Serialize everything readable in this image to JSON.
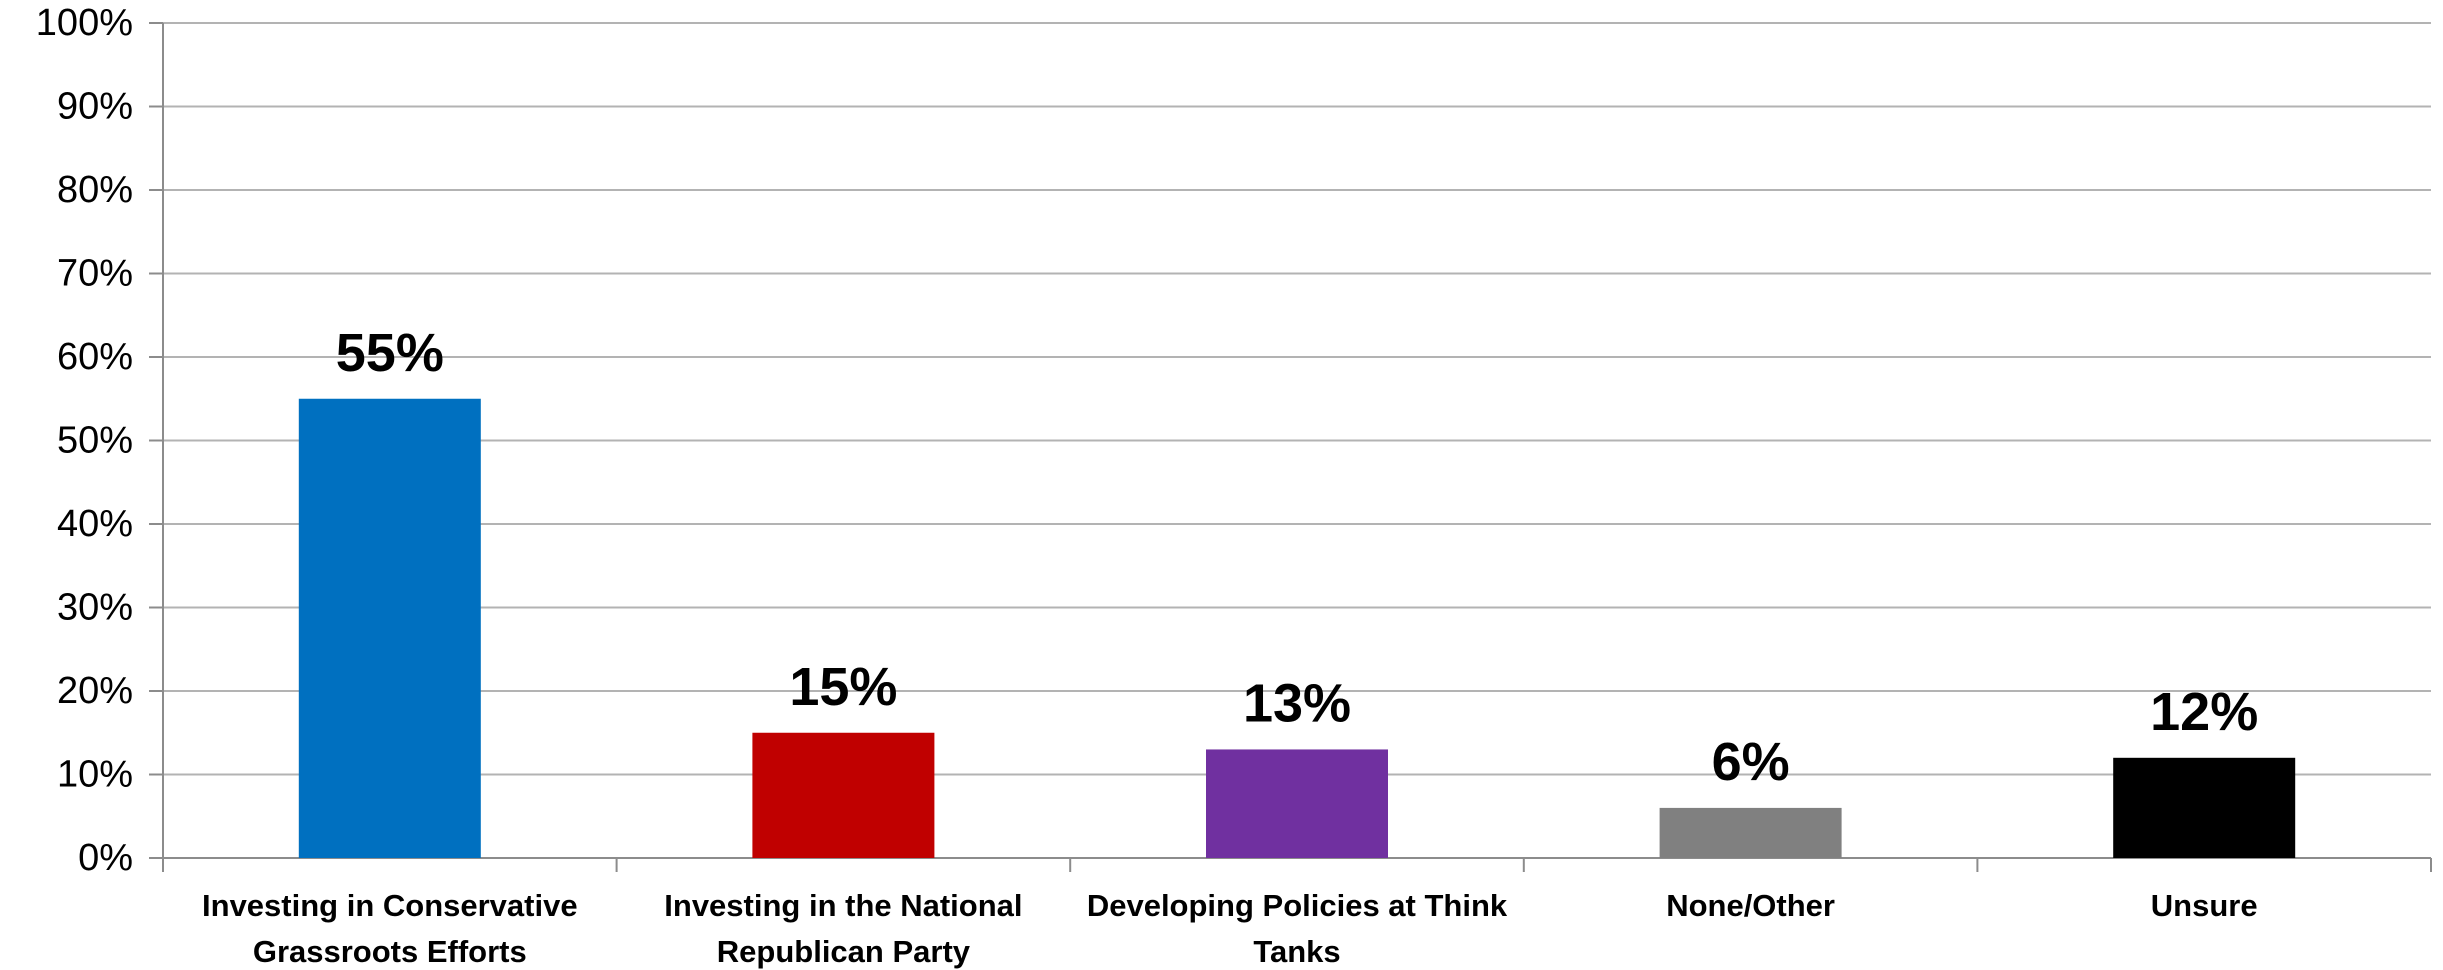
{
  "chart_data": {
    "type": "bar",
    "categories": [
      [
        "Investing in Conservative",
        "Grassroots Efforts"
      ],
      [
        "Investing in the National",
        "Republican Party"
      ],
      [
        "Developing Policies at Think",
        "Tanks"
      ],
      [
        "None/Other"
      ],
      [
        "Unsure"
      ]
    ],
    "values": [
      55,
      15,
      13,
      6,
      12
    ],
    "data_labels": [
      "55%",
      "15%",
      "13%",
      "6%",
      "12%"
    ],
    "colors": [
      "#0070C0",
      "#C00000",
      "#7030A0",
      "#808080",
      "#000000"
    ],
    "ylim": [
      0,
      100
    ],
    "yticks": [
      0,
      10,
      20,
      30,
      40,
      50,
      60,
      70,
      80,
      90,
      100
    ],
    "ytick_labels": [
      "0%",
      "10%",
      "20%",
      "30%",
      "40%",
      "50%",
      "60%",
      "70%",
      "80%",
      "90%",
      "100%"
    ],
    "grid": true,
    "legend": "none",
    "title": "",
    "xlabel": "",
    "ylabel": ""
  }
}
